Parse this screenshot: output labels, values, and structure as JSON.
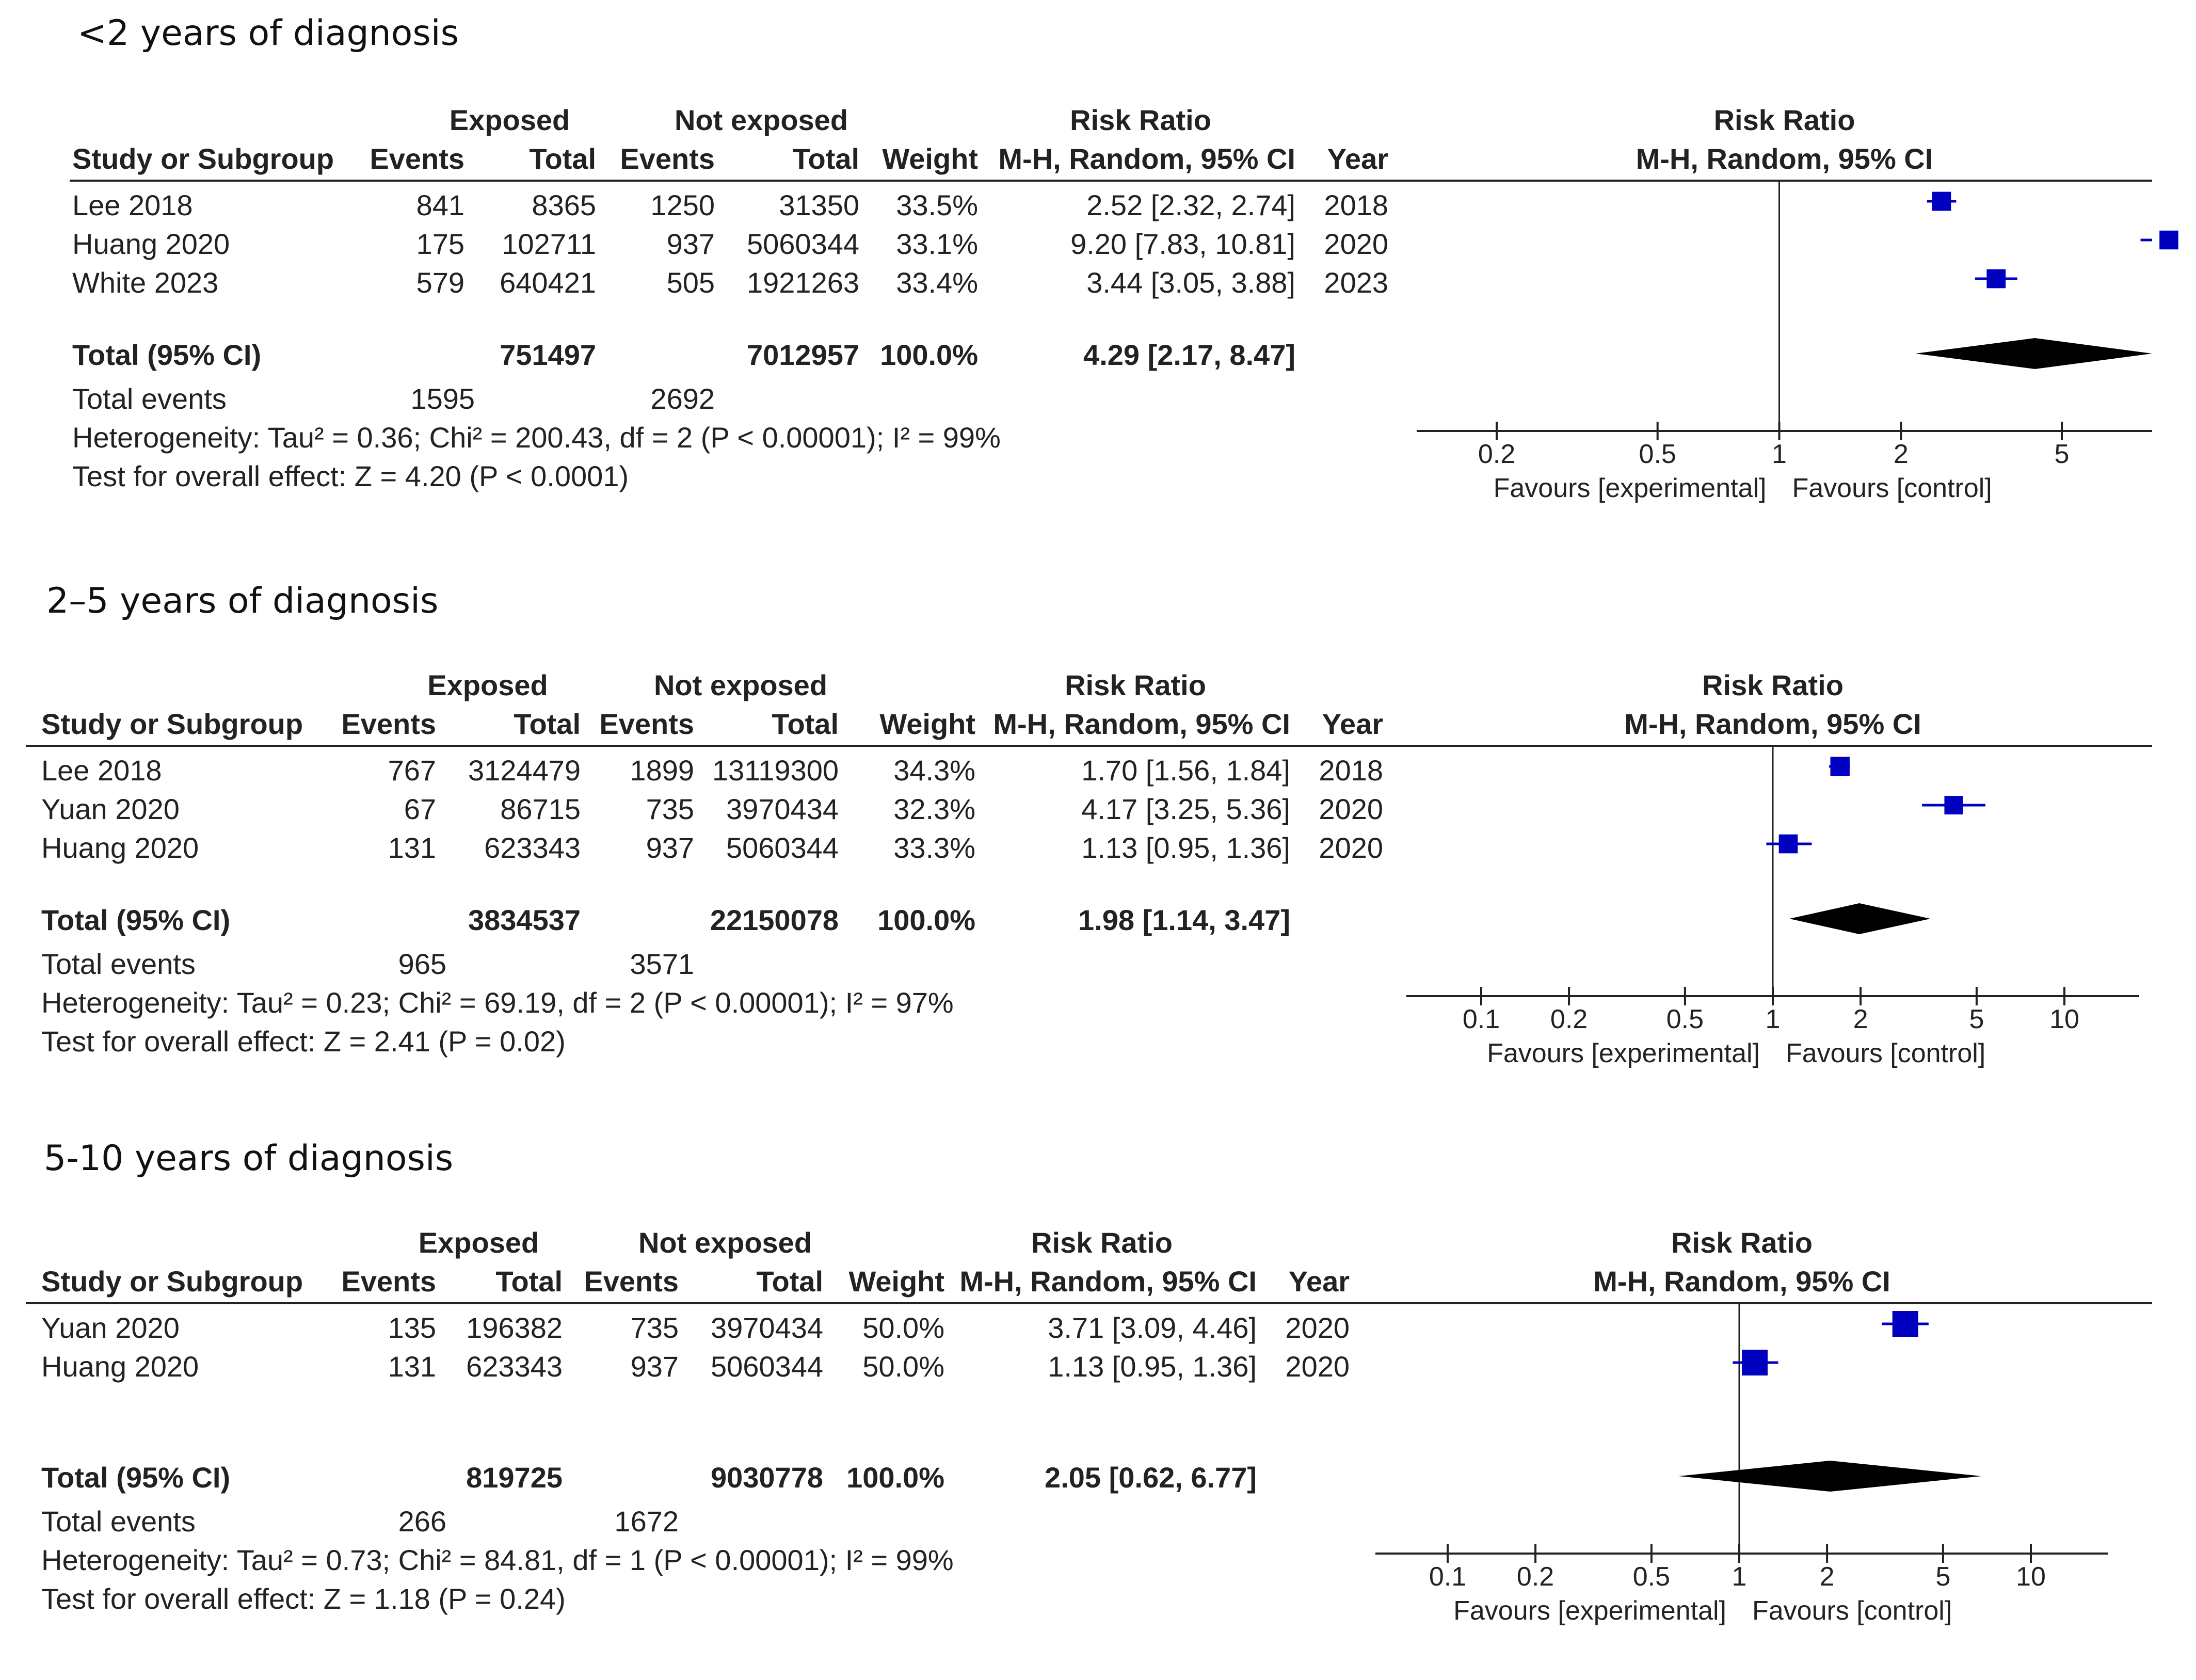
{
  "chart_data": [
    {
      "type": "forest",
      "title": "<2 years of diagnosis",
      "headers": {
        "group_exposed": "Exposed",
        "group_not_exposed": "Not exposed",
        "risk_ratio": "Risk Ratio",
        "study": "Study or Subgroup",
        "events": "Events",
        "total": "Total",
        "events2": "Events",
        "total2": "Total",
        "weight": "Weight",
        "method": "M-H, Random, 95% CI",
        "year": "Year",
        "plot_title": "Risk Ratio",
        "plot_method": "M-H, Random, 95% CI"
      },
      "studies": [
        {
          "name": "Lee 2018",
          "e_events": "841",
          "e_total": "8365",
          "n_events": "1250",
          "n_total": "31350",
          "weight": "33.5%",
          "ci_text": "2.52 [2.32, 2.74]",
          "year": "2018",
          "rr": 2.52,
          "lo": 2.32,
          "hi": 2.74,
          "w": 33.5
        },
        {
          "name": "Huang 2020",
          "e_events": "175",
          "e_total": "102711",
          "n_events": "937",
          "n_total": "5060344",
          "weight": "33.1%",
          "ci_text": "9.20 [7.83, 10.81]",
          "year": "2020",
          "rr": 9.2,
          "lo": 7.83,
          "hi": 10.81,
          "w": 33.1
        },
        {
          "name": "White 2023",
          "e_events": "579",
          "e_total": "640421",
          "n_events": "505",
          "n_total": "1921263",
          "weight": "33.4%",
          "ci_text": "3.44 [3.05, 3.88]",
          "year": "2023",
          "rr": 3.44,
          "lo": 3.05,
          "hi": 3.88,
          "w": 33.4
        }
      ],
      "total": {
        "label": "Total (95% CI)",
        "e_total": "751497",
        "n_total": "7012957",
        "weight": "100.0%",
        "ci_text": "4.29 [2.17, 8.47]",
        "rr": 4.29,
        "lo": 2.17,
        "hi": 8.47
      },
      "total_events": {
        "label": "Total events",
        "e": "1595",
        "n": "2692"
      },
      "heterogeneity": "Heterogeneity: Tau² = 0.36; Chi² = 200.43, df = 2 (P < 0.00001); I² = 99%",
      "overall_effect": "Test for overall effect: Z = 4.20 (P < 0.0001)",
      "axis": {
        "min": 0.15,
        "max": 7.9,
        "ticks": [
          0.2,
          0.5,
          1,
          2,
          5
        ],
        "tick_labels": [
          "0.2",
          "0.5",
          "1",
          "2",
          "5"
        ]
      },
      "favours_left": "Favours [experimental]",
      "favours_right": "Favours [control]",
      "color": "#0000c0"
    },
    {
      "type": "forest",
      "title": "2–5 years of diagnosis",
      "headers": {
        "group_exposed": "Exposed",
        "group_not_exposed": "Not exposed",
        "risk_ratio": "Risk Ratio",
        "study": "Study or Subgroup",
        "events": "Events",
        "total": "Total",
        "events2": "Events",
        "total2": "Total",
        "weight": "Weight",
        "method": "M-H, Random, 95% CI",
        "year": "Year",
        "plot_title": "Risk Ratio",
        "plot_method": "M-H, Random, 95% CI"
      },
      "studies": [
        {
          "name": "Lee 2018",
          "e_events": "767",
          "e_total": "3124479",
          "n_events": "1899",
          "n_total": "13119300",
          "weight": "34.3%",
          "ci_text": "1.70 [1.56, 1.84]",
          "year": "2018",
          "rr": 1.7,
          "lo": 1.56,
          "hi": 1.84,
          "w": 34.3
        },
        {
          "name": "Yuan 2020",
          "e_events": "67",
          "e_total": "86715",
          "n_events": "735",
          "n_total": "3970434",
          "weight": "32.3%",
          "ci_text": "4.17 [3.25, 5.36]",
          "year": "2020",
          "rr": 4.17,
          "lo": 3.25,
          "hi": 5.36,
          "w": 32.3
        },
        {
          "name": "Huang 2020",
          "e_events": "131",
          "e_total": "623343",
          "n_events": "937",
          "n_total": "5060344",
          "weight": "33.3%",
          "ci_text": "1.13 [0.95, 1.36]",
          "year": "2020",
          "rr": 1.13,
          "lo": 0.95,
          "hi": 1.36,
          "w": 33.3
        }
      ],
      "total": {
        "label": "Total (95% CI)",
        "e_total": "3834537",
        "n_total": "22150078",
        "weight": "100.0%",
        "ci_text": "1.98 [1.14, 3.47]",
        "rr": 1.98,
        "lo": 1.14,
        "hi": 3.47
      },
      "total_events": {
        "label": "Total events",
        "e": "965",
        "n": "3571"
      },
      "heterogeneity": "Heterogeneity: Tau² = 0.23; Chi² = 69.19, df = 2 (P < 0.00001); I² = 97%",
      "overall_effect": "Test for overall effect: Z = 2.41 (P = 0.02)",
      "axis": {
        "min": 0.067,
        "max": 15,
        "ticks": [
          0.1,
          0.2,
          0.5,
          1,
          2,
          5,
          10
        ],
        "tick_labels": [
          "0.1",
          "0.2",
          "0.5",
          "1",
          "2",
          "5",
          "10"
        ]
      },
      "favours_left": "Favours [experimental]",
      "favours_right": "Favours [control]",
      "color": "#0000c0"
    },
    {
      "type": "forest",
      "title": "5-10 years of diagnosis",
      "headers": {
        "group_exposed": "Exposed",
        "group_not_exposed": "Not exposed",
        "risk_ratio": "Risk Ratio",
        "study": "Study or Subgroup",
        "events": "Events",
        "total": "Total",
        "events2": "Events",
        "total2": "Total",
        "weight": "Weight",
        "method": "M-H, Random, 95% CI",
        "year": "Year",
        "plot_title": "Risk Ratio",
        "plot_method": "M-H, Random, 95% CI"
      },
      "studies": [
        {
          "name": "Yuan 2020",
          "e_events": "135",
          "e_total": "196382",
          "n_events": "735",
          "n_total": "3970434",
          "weight": "50.0%",
          "ci_text": "3.71 [3.09, 4.46]",
          "year": "2020",
          "rr": 3.71,
          "lo": 3.09,
          "hi": 4.46,
          "w": 50.0
        },
        {
          "name": "Huang 2020",
          "e_events": "131",
          "e_total": "623343",
          "n_events": "937",
          "n_total": "5060344",
          "weight": "50.0%",
          "ci_text": "1.13 [0.95, 1.36]",
          "year": "2020",
          "rr": 1.13,
          "lo": 0.95,
          "hi": 1.36,
          "w": 50.0
        }
      ],
      "total": {
        "label": "Total (95% CI)",
        "e_total": "819725",
        "n_total": "9030778",
        "weight": "100.0%",
        "ci_text": "2.05 [0.62, 6.77]",
        "rr": 2.05,
        "lo": 0.62,
        "hi": 6.77
      },
      "total_events": {
        "label": "Total events",
        "e": "266",
        "n": "1672"
      },
      "heterogeneity": "Heterogeneity: Tau² = 0.73; Chi² = 84.81, df = 1 (P < 0.00001); I² = 99%",
      "overall_effect": "Test for overall effect: Z = 1.18 (P = 0.24)",
      "axis": {
        "min": 0.067,
        "max": 15,
        "ticks": [
          0.1,
          0.2,
          0.5,
          1,
          2,
          5,
          10
        ],
        "tick_labels": [
          "0.1",
          "0.2",
          "0.5",
          "1",
          "2",
          "5",
          "10"
        ]
      },
      "favours_left": "Favours [experimental]",
      "favours_right": "Favours [control]",
      "color": "#0000c0"
    }
  ]
}
